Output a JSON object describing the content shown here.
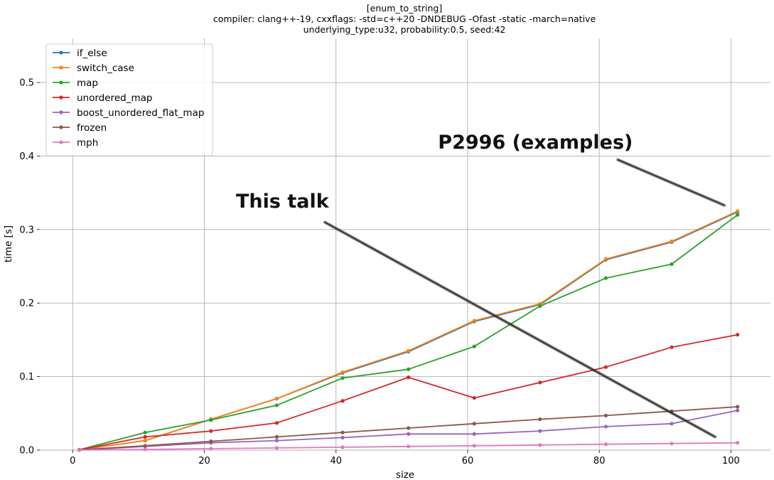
{
  "chart_data": {
    "type": "line",
    "title_lines": [
      "[enum_to_string]",
      "compiler: clang++-19, cxxflags: -std=c++20 -DNDEBUG -Ofast -static -march=native",
      "underlying_type:u32, probability:0.5, seed:42"
    ],
    "xlabel": "size",
    "ylabel": "time [s]",
    "xlim": [
      -5,
      106
    ],
    "ylim": [
      0,
      0.56
    ],
    "xticks": [
      0,
      20,
      40,
      60,
      80,
      100
    ],
    "yticks": [
      0.0,
      0.1,
      0.2,
      0.3,
      0.4,
      0.5
    ],
    "grid": true,
    "legend_position": "top-left",
    "x": [
      1,
      11,
      21,
      31,
      41,
      51,
      61,
      71,
      81,
      91,
      101
    ],
    "series": [
      {
        "name": "if_else",
        "color": "#1f77b4",
        "values": [
          0.0005,
          0.013,
          0.042,
          0.07,
          0.105,
          0.134,
          0.175,
          0.198,
          0.259,
          0.283,
          0.324
        ]
      },
      {
        "name": "switch_case",
        "color": "#ff7f0e",
        "values": [
          0.0005,
          0.013,
          0.042,
          0.07,
          0.106,
          0.135,
          0.176,
          0.199,
          0.26,
          0.284,
          0.325
        ]
      },
      {
        "name": "map",
        "color": "#2ca02c",
        "values": [
          0.0005,
          0.024,
          0.041,
          0.061,
          0.098,
          0.11,
          0.141,
          0.196,
          0.234,
          0.253,
          0.32
        ]
      },
      {
        "name": "unordered_map",
        "color": "#d62728",
        "values": [
          0.0005,
          0.018,
          0.026,
          0.037,
          0.067,
          0.099,
          0.071,
          0.092,
          0.113,
          0.14,
          0.157
        ]
      },
      {
        "name": "boost_unordered_flat_map",
        "color": "#9467bd",
        "values": [
          0.0002,
          0.005,
          0.01,
          0.013,
          0.017,
          0.022,
          0.022,
          0.026,
          0.032,
          0.036,
          0.054
        ]
      },
      {
        "name": "frozen",
        "color": "#8c564b",
        "values": [
          0.0002,
          0.006,
          0.012,
          0.018,
          0.024,
          0.03,
          0.036,
          0.042,
          0.047,
          0.053,
          0.059
        ]
      },
      {
        "name": "mph",
        "color": "#e377c2",
        "values": [
          0.0001,
          0.001,
          0.002,
          0.003,
          0.004,
          0.005,
          0.006,
          0.007,
          0.008,
          0.009,
          0.01
        ]
      }
    ],
    "annotations": [
      {
        "text": "P2996 (examples)",
        "arrow_from": [
          82.8,
          0.395
        ],
        "arrow_to": [
          99.0,
          0.333
        ],
        "text_anchor_at": [
          55.5,
          0.41
        ],
        "size": "large"
      },
      {
        "text": "This talk",
        "arrow_from": [
          38.3,
          0.31
        ],
        "arrow_to": [
          97.6,
          0.018
        ],
        "text_anchor_at": [
          24.8,
          0.33
        ],
        "size": "large"
      }
    ]
  }
}
